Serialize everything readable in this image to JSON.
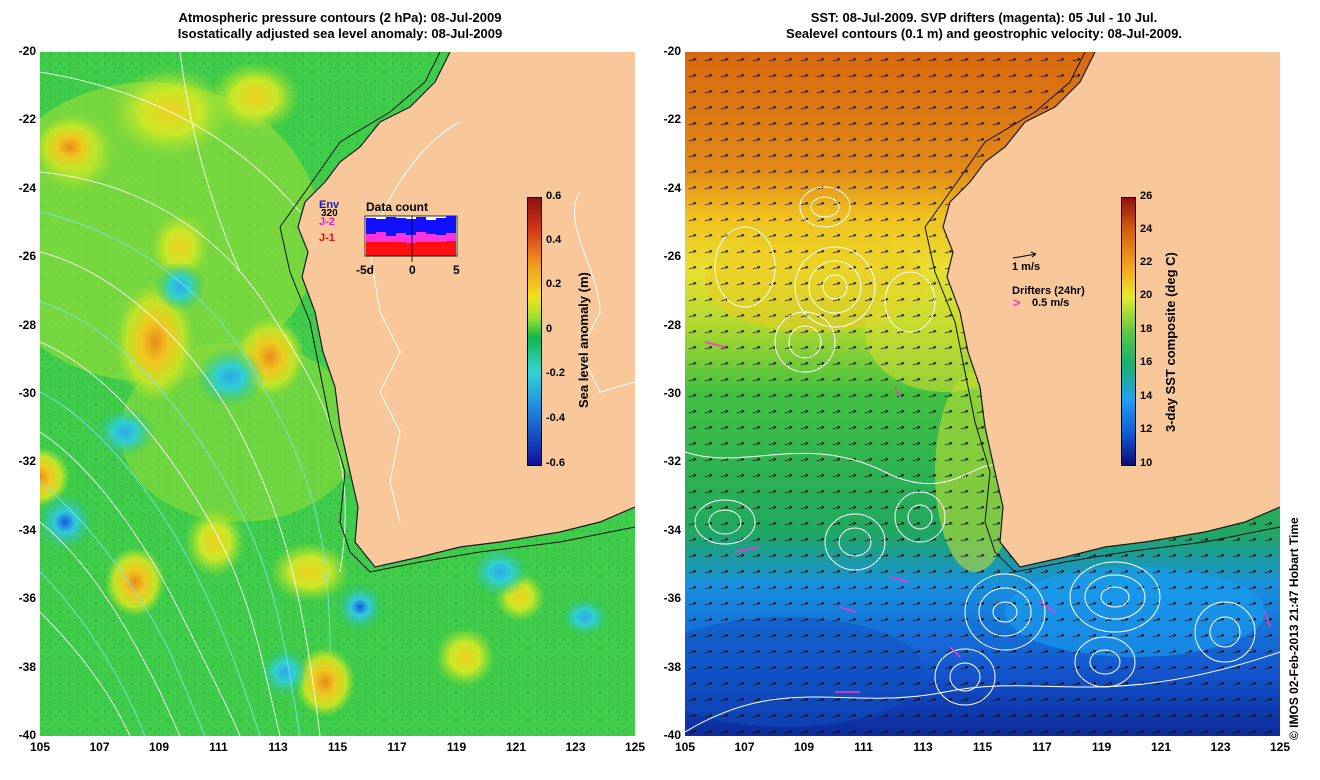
{
  "left_panel": {
    "title_line1": "Atmospheric pressure contours (2 hPa): 08-Jul-2009",
    "title_line2": "Isostatically adjusted sea level anomaly: 08-Jul-2009",
    "colorbar_label": "Sea level anomaly (m)",
    "colorbar_ticks": [
      "0.6",
      "0.4",
      "0.2",
      "0",
      "-0.2",
      "-0.4",
      "-0.6"
    ],
    "inset": {
      "title": "Data count",
      "labels": [
        "Env",
        "J-2",
        "J-1"
      ],
      "count_label": "320",
      "x_ticks": [
        "-5d",
        "0",
        "5"
      ]
    }
  },
  "right_panel": {
    "title_line1": "SST: 08-Jul-2009. SVP drifters (magenta): 05 Jul - 10 Jul.",
    "title_line2": "Sealevel contours (0.1 m) and geostrophic velocity: 08-Jul-2009.",
    "colorbar_label": "3-day SST composite (deg C)",
    "colorbar_ticks": [
      "26",
      "24",
      "22",
      "20",
      "18",
      "16",
      "14",
      "12",
      "10"
    ],
    "velocity_scale_label": "1 m/s",
    "drifters_label": "Drifters (24hr)",
    "drifters_scale_label": "0.5 m/s"
  },
  "axes": {
    "lat_labels": [
      "-20",
      "-22",
      "-24",
      "-26",
      "-28",
      "-30",
      "-32",
      "-34",
      "-36",
      "-38",
      "-40"
    ],
    "lon_labels": [
      "105",
      "107",
      "109",
      "111",
      "113",
      "115",
      "117",
      "119",
      "121",
      "123",
      "125"
    ]
  },
  "credit": "© IMOS 02-Feb-2013 21:47 Hobart Time",
  "colors": {
    "land": "#f8c89a",
    "sla_scale": [
      "#10109a",
      "#1f8ce0",
      "#30d4d6",
      "#10b84a",
      "#9fe030",
      "#f0e020",
      "#f29a20",
      "#d03818",
      "#8a1010"
    ],
    "sst_scale": [
      "#0a0a78",
      "#1460d8",
      "#22a0f0",
      "#18b070",
      "#60c840",
      "#e8e830",
      "#f0a020",
      "#d06010",
      "#901010"
    ],
    "drifter": "#ff33cc"
  }
}
